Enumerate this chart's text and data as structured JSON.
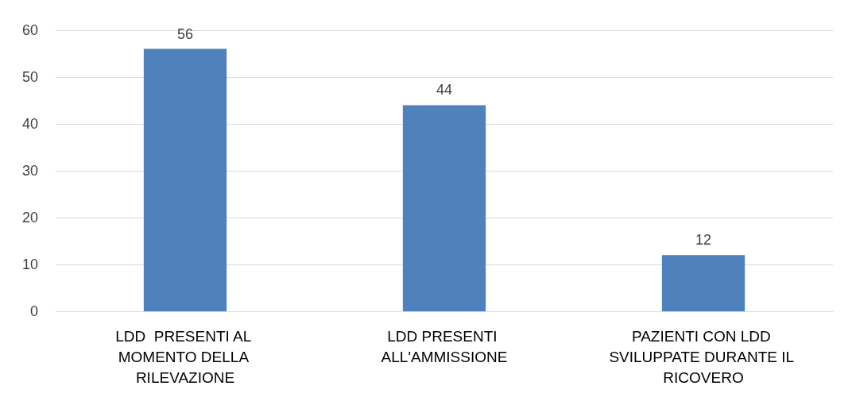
{
  "chart_data": {
    "type": "bar",
    "categories": [
      "LDD  PRESENTI AL MOMENTO DELLA RILEVAZIONE",
      "LDD PRESENTI ALL'AMMISSIONE",
      "PAZIENTI CON LDD SVILUPPATE DURANTE IL RICOVERO"
    ],
    "values": [
      56,
      44,
      12
    ],
    "color": "#4f81bd",
    "ylim": [
      0,
      60
    ],
    "yticks": [
      0,
      10,
      20,
      30,
      40,
      50,
      60
    ],
    "grid": "y",
    "data_labels": true
  }
}
